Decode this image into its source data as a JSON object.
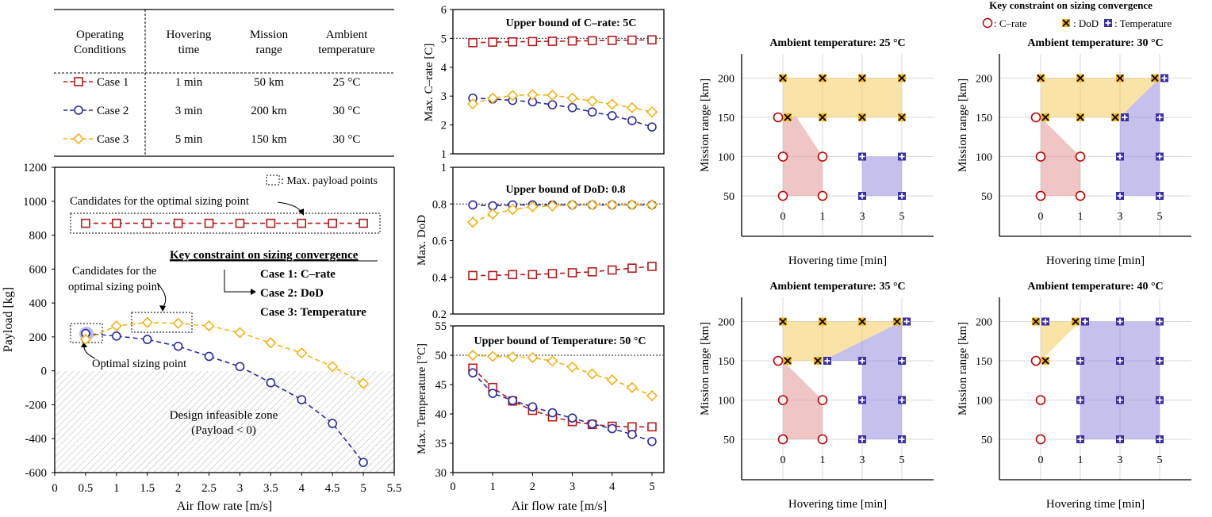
{
  "table": {
    "headers": [
      "Operating\nConditions",
      "Hovering\ntime",
      "Mission\nrange",
      "Ambient\ntemperature"
    ],
    "rows": [
      {
        "case": "Case 1",
        "hover": "1 min",
        "range": "50 km",
        "temp": "25 °C",
        "color": "#b31b1b",
        "marker": "square"
      },
      {
        "case": "Case 2",
        "hover": "3 min",
        "range": "200 km",
        "temp": "30 °C",
        "color": "#2b2b9f",
        "marker": "circle"
      },
      {
        "case": "Case 3",
        "hover": "5 min",
        "range": "150 km",
        "temp": "30 °C",
        "color": "#f2b318",
        "marker": "diamond"
      }
    ]
  },
  "payload": {
    "xlabel": "Air flow rate [m/s]",
    "ylabel": "Payload [kg]",
    "legend_box": ": Max. payload points",
    "annotations": {
      "candidates_top": "Candidates for the optimal sizing point",
      "candidates_mid_1": "Candidates for the",
      "candidates_mid_2": "optimal sizing point",
      "optimal": "Optimal sizing point",
      "key_title": "Key constraint on sizing convergence",
      "key_case1": "Case 1: C–rate",
      "key_case2": "Case 2: DoD",
      "key_case3": "Case 3: Temperature",
      "infeasible_1": "Design infeasible zone",
      "infeasible_2": "(Payload < 0)"
    }
  },
  "crate_panel": {
    "title": "Upper bound of C–rate: 5C",
    "ylabel": "Max. C–rate [C]"
  },
  "dod_panel": {
    "title": "Upper bound of DoD: 0.8",
    "ylabel": "Max. DoD"
  },
  "temp_panel": {
    "title": "Upper bound of Temperature: 50 °C",
    "ylabel": "Max. Temperature [°C]",
    "xlabel": "Air flow rate [m/s]"
  },
  "maps": {
    "xlabel": "Hovering time [min]",
    "ylabel": "Mission range [km]",
    "legend_title": "Key constraint on sizing convergence",
    "legend_items": [
      ": C–rate",
      ": DoD",
      ": Temperature"
    ]
  },
  "chart_data": [
    {
      "type": "line",
      "title": "",
      "xlabel": "Air flow rate [m/s]",
      "ylabel": "Payload [kg]",
      "xlim": [
        0,
        5.5
      ],
      "ylim": [
        -600,
        1200
      ],
      "xticks": [
        0,
        0.5,
        1,
        1.5,
        2,
        2.5,
        3,
        3.5,
        4,
        4.5,
        5,
        5.5
      ],
      "yticks": [
        -600,
        -400,
        -200,
        0,
        200,
        400,
        600,
        800,
        1000,
        1200
      ],
      "x": [
        0.5,
        1,
        1.5,
        2,
        2.5,
        3,
        3.5,
        4,
        4.5,
        5
      ],
      "series": [
        {
          "name": "Case 1",
          "values": [
            870,
            870,
            870,
            870,
            870,
            870,
            870,
            870,
            870,
            870
          ]
        },
        {
          "name": "Case 2",
          "values": [
            220,
            205,
            185,
            145,
            85,
            25,
            -70,
            -170,
            -310,
            -540
          ]
        },
        {
          "name": "Case 3",
          "values": [
            185,
            265,
            285,
            280,
            265,
            225,
            165,
            105,
            25,
            -75
          ]
        }
      ]
    },
    {
      "type": "line",
      "title": "Upper bound of C–rate: 5C",
      "ylabel": "Max. C–rate [C]",
      "xlim": [
        0,
        5.3
      ],
      "ylim": [
        1,
        6
      ],
      "yticks": [
        1,
        2,
        3,
        4,
        5,
        6
      ],
      "bound": 5,
      "x": [
        0.5,
        1,
        1.5,
        2,
        2.5,
        3,
        3.5,
        4,
        4.5,
        5
      ],
      "series": [
        {
          "name": "Case 1",
          "values": [
            4.85,
            4.87,
            4.88,
            4.89,
            4.9,
            4.91,
            4.92,
            4.93,
            4.94,
            4.95
          ]
        },
        {
          "name": "Case 2",
          "values": [
            2.93,
            2.9,
            2.85,
            2.8,
            2.7,
            2.6,
            2.45,
            2.32,
            2.15,
            1.93
          ]
        },
        {
          "name": "Case 3",
          "values": [
            2.73,
            2.93,
            3.02,
            3.05,
            3.03,
            2.93,
            2.83,
            2.72,
            2.6,
            2.45
          ]
        }
      ]
    },
    {
      "type": "line",
      "title": "Upper bound of DoD: 0.8",
      "ylabel": "Max. DoD",
      "xlim": [
        0,
        5.3
      ],
      "ylim": [
        0.2,
        1
      ],
      "yticks": [
        0.2,
        0.4,
        0.6,
        0.8,
        1
      ],
      "bound": 0.8,
      "x": [
        0.5,
        1,
        1.5,
        2,
        2.5,
        3,
        3.5,
        4,
        4.5,
        5
      ],
      "series": [
        {
          "name": "Case 1",
          "values": [
            0.41,
            0.41,
            0.415,
            0.415,
            0.42,
            0.425,
            0.43,
            0.44,
            0.45,
            0.46
          ]
        },
        {
          "name": "Case 2",
          "values": [
            0.795,
            0.79,
            0.795,
            0.795,
            0.795,
            0.795,
            0.795,
            0.795,
            0.795,
            0.795
          ]
        },
        {
          "name": "Case 3",
          "values": [
            0.7,
            0.745,
            0.77,
            0.785,
            0.79,
            0.795,
            0.795,
            0.795,
            0.795,
            0.795
          ]
        }
      ]
    },
    {
      "type": "line",
      "title": "Upper bound of Temperature: 50 °C",
      "xlabel": "Air flow rate [m/s]",
      "ylabel": "Max. Temperature [°C]",
      "xlim": [
        0,
        5.3
      ],
      "ylim": [
        30,
        55
      ],
      "xticks": [
        0,
        1,
        2,
        3,
        4,
        5
      ],
      "yticks": [
        30,
        35,
        40,
        45,
        50,
        55
      ],
      "bound": 50,
      "x": [
        0.5,
        1,
        1.5,
        2,
        2.5,
        3,
        3.5,
        4,
        4.5,
        5
      ],
      "series": [
        {
          "name": "Case 1",
          "values": [
            47.8,
            44.5,
            42.2,
            40.6,
            39.5,
            38.7,
            38.2,
            37.9,
            37.8,
            37.8
          ]
        },
        {
          "name": "Case 2",
          "values": [
            47,
            43.5,
            42.3,
            41.2,
            40.2,
            39.3,
            38.3,
            37.5,
            36.5,
            35.3
          ]
        },
        {
          "name": "Case 3",
          "values": [
            50,
            49.8,
            49.7,
            49.6,
            49,
            48,
            46.8,
            45.8,
            44.5,
            43.1
          ]
        }
      ]
    },
    {
      "type": "scatter",
      "title": "Ambient temperature: 25 °C",
      "xlabel": "Hovering time [min]",
      "ylabel": "Mission range [km]",
      "xticks": [
        "0",
        "1",
        "3",
        "5"
      ],
      "yticks": [
        50,
        100,
        150,
        200
      ],
      "points": [
        {
          "x": "0",
          "y": 50,
          "c": "C–rate"
        },
        {
          "x": "0",
          "y": 100,
          "c": "C–rate"
        },
        {
          "x": "0",
          "y": 150,
          "c": "C–rate+DoD"
        },
        {
          "x": "0",
          "y": 200,
          "c": "DoD"
        },
        {
          "x": "1",
          "y": 50,
          "c": "C–rate"
        },
        {
          "x": "1",
          "y": 100,
          "c": "C–rate"
        },
        {
          "x": "1",
          "y": 150,
          "c": "DoD"
        },
        {
          "x": "1",
          "y": 200,
          "c": "DoD"
        },
        {
          "x": "3",
          "y": 50,
          "c": "Temperature"
        },
        {
          "x": "3",
          "y": 100,
          "c": "Temperature"
        },
        {
          "x": "3",
          "y": 150,
          "c": "DoD"
        },
        {
          "x": "3",
          "y": 200,
          "c": "DoD"
        },
        {
          "x": "5",
          "y": 50,
          "c": "Temperature"
        },
        {
          "x": "5",
          "y": 100,
          "c": "Temperature"
        },
        {
          "x": "5",
          "y": 150,
          "c": "DoD"
        },
        {
          "x": "5",
          "y": 200,
          "c": "DoD"
        }
      ]
    },
    {
      "type": "scatter",
      "title": "Ambient temperature: 30 °C",
      "xlabel": "Hovering time [min]",
      "ylabel": "Mission range [km]",
      "xticks": [
        "0",
        "1",
        "3",
        "5"
      ],
      "yticks": [
        50,
        100,
        150,
        200
      ],
      "points": [
        {
          "x": "0",
          "y": 50,
          "c": "C–rate"
        },
        {
          "x": "0",
          "y": 100,
          "c": "C–rate"
        },
        {
          "x": "0",
          "y": 150,
          "c": "C–rate+DoD"
        },
        {
          "x": "0",
          "y": 200,
          "c": "DoD"
        },
        {
          "x": "1",
          "y": 50,
          "c": "C–rate"
        },
        {
          "x": "1",
          "y": 100,
          "c": "C–rate"
        },
        {
          "x": "1",
          "y": 150,
          "c": "DoD"
        },
        {
          "x": "1",
          "y": 200,
          "c": "DoD"
        },
        {
          "x": "3",
          "y": 50,
          "c": "Temperature"
        },
        {
          "x": "3",
          "y": 100,
          "c": "Temperature"
        },
        {
          "x": "3",
          "y": 150,
          "c": "DoD+Temperature"
        },
        {
          "x": "3",
          "y": 200,
          "c": "DoD"
        },
        {
          "x": "5",
          "y": 50,
          "c": "Temperature"
        },
        {
          "x": "5",
          "y": 100,
          "c": "Temperature"
        },
        {
          "x": "5",
          "y": 150,
          "c": "Temperature"
        },
        {
          "x": "5",
          "y": 200,
          "c": "DoD+Temperature"
        }
      ]
    },
    {
      "type": "scatter",
      "title": "Ambient temperature: 35 °C",
      "xlabel": "Hovering time [min]",
      "ylabel": "Mission range [km]",
      "xticks": [
        "0",
        "1",
        "3",
        "5"
      ],
      "yticks": [
        50,
        100,
        150,
        200
      ],
      "points": [
        {
          "x": "0",
          "y": 50,
          "c": "C–rate"
        },
        {
          "x": "0",
          "y": 100,
          "c": "C–rate"
        },
        {
          "x": "0",
          "y": 150,
          "c": "C–rate+DoD"
        },
        {
          "x": "0",
          "y": 200,
          "c": "DoD"
        },
        {
          "x": "1",
          "y": 50,
          "c": "C–rate"
        },
        {
          "x": "1",
          "y": 100,
          "c": "C–rate"
        },
        {
          "x": "1",
          "y": 150,
          "c": "DoD+Temperature"
        },
        {
          "x": "1",
          "y": 200,
          "c": "DoD"
        },
        {
          "x": "3",
          "y": 50,
          "c": "Temperature"
        },
        {
          "x": "3",
          "y": 100,
          "c": "Temperature"
        },
        {
          "x": "3",
          "y": 150,
          "c": "Temperature"
        },
        {
          "x": "3",
          "y": 200,
          "c": "DoD"
        },
        {
          "x": "5",
          "y": 50,
          "c": "Temperature"
        },
        {
          "x": "5",
          "y": 100,
          "c": "Temperature"
        },
        {
          "x": "5",
          "y": 150,
          "c": "Temperature"
        },
        {
          "x": "5",
          "y": 200,
          "c": "DoD+Temperature"
        }
      ]
    },
    {
      "type": "scatter",
      "title": "Ambient temperature: 40 °C",
      "xlabel": "Hovering time [min]",
      "ylabel": "Mission range [km]",
      "xticks": [
        "0",
        "1",
        "3",
        "5"
      ],
      "yticks": [
        50,
        100,
        150,
        200
      ],
      "points": [
        {
          "x": "0",
          "y": 50,
          "c": "C–rate"
        },
        {
          "x": "0",
          "y": 100,
          "c": "C–rate"
        },
        {
          "x": "0",
          "y": 150,
          "c": "C–rate+DoD"
        },
        {
          "x": "0",
          "y": 200,
          "c": "DoD+Temperature"
        },
        {
          "x": "1",
          "y": 50,
          "c": "Temperature"
        },
        {
          "x": "1",
          "y": 100,
          "c": "Temperature"
        },
        {
          "x": "1",
          "y": 150,
          "c": "Temperature"
        },
        {
          "x": "1",
          "y": 200,
          "c": "DoD+Temperature"
        },
        {
          "x": "3",
          "y": 50,
          "c": "Temperature"
        },
        {
          "x": "3",
          "y": 100,
          "c": "Temperature"
        },
        {
          "x": "3",
          "y": 150,
          "c": "Temperature"
        },
        {
          "x": "3",
          "y": 200,
          "c": "Temperature"
        },
        {
          "x": "5",
          "y": 50,
          "c": "Temperature"
        },
        {
          "x": "5",
          "y": 100,
          "c": "Temperature"
        },
        {
          "x": "5",
          "y": 150,
          "c": "Temperature"
        },
        {
          "x": "5",
          "y": 200,
          "c": "Temperature"
        }
      ]
    }
  ]
}
